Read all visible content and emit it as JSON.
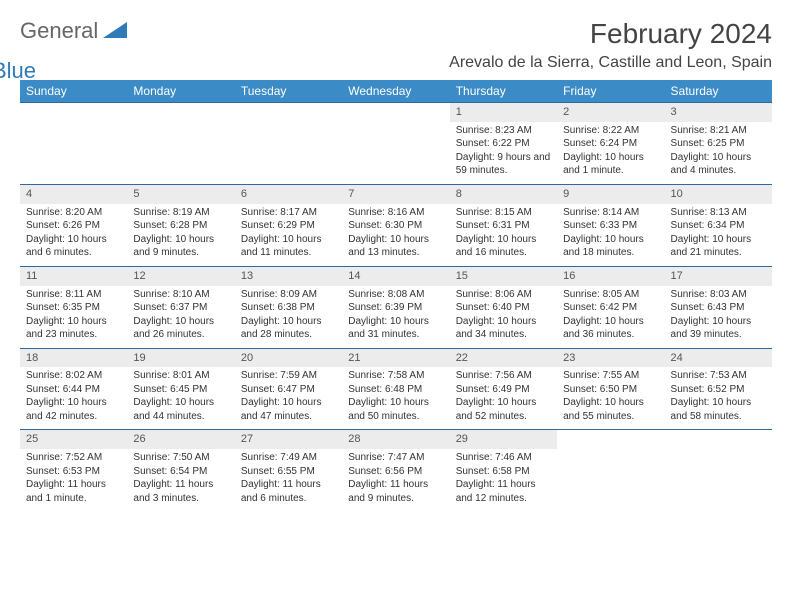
{
  "logo": {
    "text1": "General",
    "text2": "Blue"
  },
  "title": "February 2024",
  "location": "Arevalo de la Sierra, Castille and Leon, Spain",
  "colors": {
    "header_bg": "#3b8bc6",
    "header_text": "#ffffff",
    "row_divider": "#2f6a9e",
    "daynum_bg": "#ececec",
    "logo_gray": "#666666",
    "logo_blue": "#2f7ab8"
  },
  "weekdays": [
    "Sunday",
    "Monday",
    "Tuesday",
    "Wednesday",
    "Thursday",
    "Friday",
    "Saturday"
  ],
  "weeks": [
    [
      {
        "n": "",
        "lines": []
      },
      {
        "n": "",
        "lines": []
      },
      {
        "n": "",
        "lines": []
      },
      {
        "n": "",
        "lines": []
      },
      {
        "n": "1",
        "lines": [
          "Sunrise: 8:23 AM",
          "Sunset: 6:22 PM",
          "Daylight: 9 hours and 59 minutes."
        ]
      },
      {
        "n": "2",
        "lines": [
          "Sunrise: 8:22 AM",
          "Sunset: 6:24 PM",
          "Daylight: 10 hours and 1 minute."
        ]
      },
      {
        "n": "3",
        "lines": [
          "Sunrise: 8:21 AM",
          "Sunset: 6:25 PM",
          "Daylight: 10 hours and 4 minutes."
        ]
      }
    ],
    [
      {
        "n": "4",
        "lines": [
          "Sunrise: 8:20 AM",
          "Sunset: 6:26 PM",
          "Daylight: 10 hours and 6 minutes."
        ]
      },
      {
        "n": "5",
        "lines": [
          "Sunrise: 8:19 AM",
          "Sunset: 6:28 PM",
          "Daylight: 10 hours and 9 minutes."
        ]
      },
      {
        "n": "6",
        "lines": [
          "Sunrise: 8:17 AM",
          "Sunset: 6:29 PM",
          "Daylight: 10 hours and 11 minutes."
        ]
      },
      {
        "n": "7",
        "lines": [
          "Sunrise: 8:16 AM",
          "Sunset: 6:30 PM",
          "Daylight: 10 hours and 13 minutes."
        ]
      },
      {
        "n": "8",
        "lines": [
          "Sunrise: 8:15 AM",
          "Sunset: 6:31 PM",
          "Daylight: 10 hours and 16 minutes."
        ]
      },
      {
        "n": "9",
        "lines": [
          "Sunrise: 8:14 AM",
          "Sunset: 6:33 PM",
          "Daylight: 10 hours and 18 minutes."
        ]
      },
      {
        "n": "10",
        "lines": [
          "Sunrise: 8:13 AM",
          "Sunset: 6:34 PM",
          "Daylight: 10 hours and 21 minutes."
        ]
      }
    ],
    [
      {
        "n": "11",
        "lines": [
          "Sunrise: 8:11 AM",
          "Sunset: 6:35 PM",
          "Daylight: 10 hours and 23 minutes."
        ]
      },
      {
        "n": "12",
        "lines": [
          "Sunrise: 8:10 AM",
          "Sunset: 6:37 PM",
          "Daylight: 10 hours and 26 minutes."
        ]
      },
      {
        "n": "13",
        "lines": [
          "Sunrise: 8:09 AM",
          "Sunset: 6:38 PM",
          "Daylight: 10 hours and 28 minutes."
        ]
      },
      {
        "n": "14",
        "lines": [
          "Sunrise: 8:08 AM",
          "Sunset: 6:39 PM",
          "Daylight: 10 hours and 31 minutes."
        ]
      },
      {
        "n": "15",
        "lines": [
          "Sunrise: 8:06 AM",
          "Sunset: 6:40 PM",
          "Daylight: 10 hours and 34 minutes."
        ]
      },
      {
        "n": "16",
        "lines": [
          "Sunrise: 8:05 AM",
          "Sunset: 6:42 PM",
          "Daylight: 10 hours and 36 minutes."
        ]
      },
      {
        "n": "17",
        "lines": [
          "Sunrise: 8:03 AM",
          "Sunset: 6:43 PM",
          "Daylight: 10 hours and 39 minutes."
        ]
      }
    ],
    [
      {
        "n": "18",
        "lines": [
          "Sunrise: 8:02 AM",
          "Sunset: 6:44 PM",
          "Daylight: 10 hours and 42 minutes."
        ]
      },
      {
        "n": "19",
        "lines": [
          "Sunrise: 8:01 AM",
          "Sunset: 6:45 PM",
          "Daylight: 10 hours and 44 minutes."
        ]
      },
      {
        "n": "20",
        "lines": [
          "Sunrise: 7:59 AM",
          "Sunset: 6:47 PM",
          "Daylight: 10 hours and 47 minutes."
        ]
      },
      {
        "n": "21",
        "lines": [
          "Sunrise: 7:58 AM",
          "Sunset: 6:48 PM",
          "Daylight: 10 hours and 50 minutes."
        ]
      },
      {
        "n": "22",
        "lines": [
          "Sunrise: 7:56 AM",
          "Sunset: 6:49 PM",
          "Daylight: 10 hours and 52 minutes."
        ]
      },
      {
        "n": "23",
        "lines": [
          "Sunrise: 7:55 AM",
          "Sunset: 6:50 PM",
          "Daylight: 10 hours and 55 minutes."
        ]
      },
      {
        "n": "24",
        "lines": [
          "Sunrise: 7:53 AM",
          "Sunset: 6:52 PM",
          "Daylight: 10 hours and 58 minutes."
        ]
      }
    ],
    [
      {
        "n": "25",
        "lines": [
          "Sunrise: 7:52 AM",
          "Sunset: 6:53 PM",
          "Daylight: 11 hours and 1 minute."
        ]
      },
      {
        "n": "26",
        "lines": [
          "Sunrise: 7:50 AM",
          "Sunset: 6:54 PM",
          "Daylight: 11 hours and 3 minutes."
        ]
      },
      {
        "n": "27",
        "lines": [
          "Sunrise: 7:49 AM",
          "Sunset: 6:55 PM",
          "Daylight: 11 hours and 6 minutes."
        ]
      },
      {
        "n": "28",
        "lines": [
          "Sunrise: 7:47 AM",
          "Sunset: 6:56 PM",
          "Daylight: 11 hours and 9 minutes."
        ]
      },
      {
        "n": "29",
        "lines": [
          "Sunrise: 7:46 AM",
          "Sunset: 6:58 PM",
          "Daylight: 11 hours and 12 minutes."
        ]
      },
      {
        "n": "",
        "lines": []
      },
      {
        "n": "",
        "lines": []
      }
    ]
  ]
}
